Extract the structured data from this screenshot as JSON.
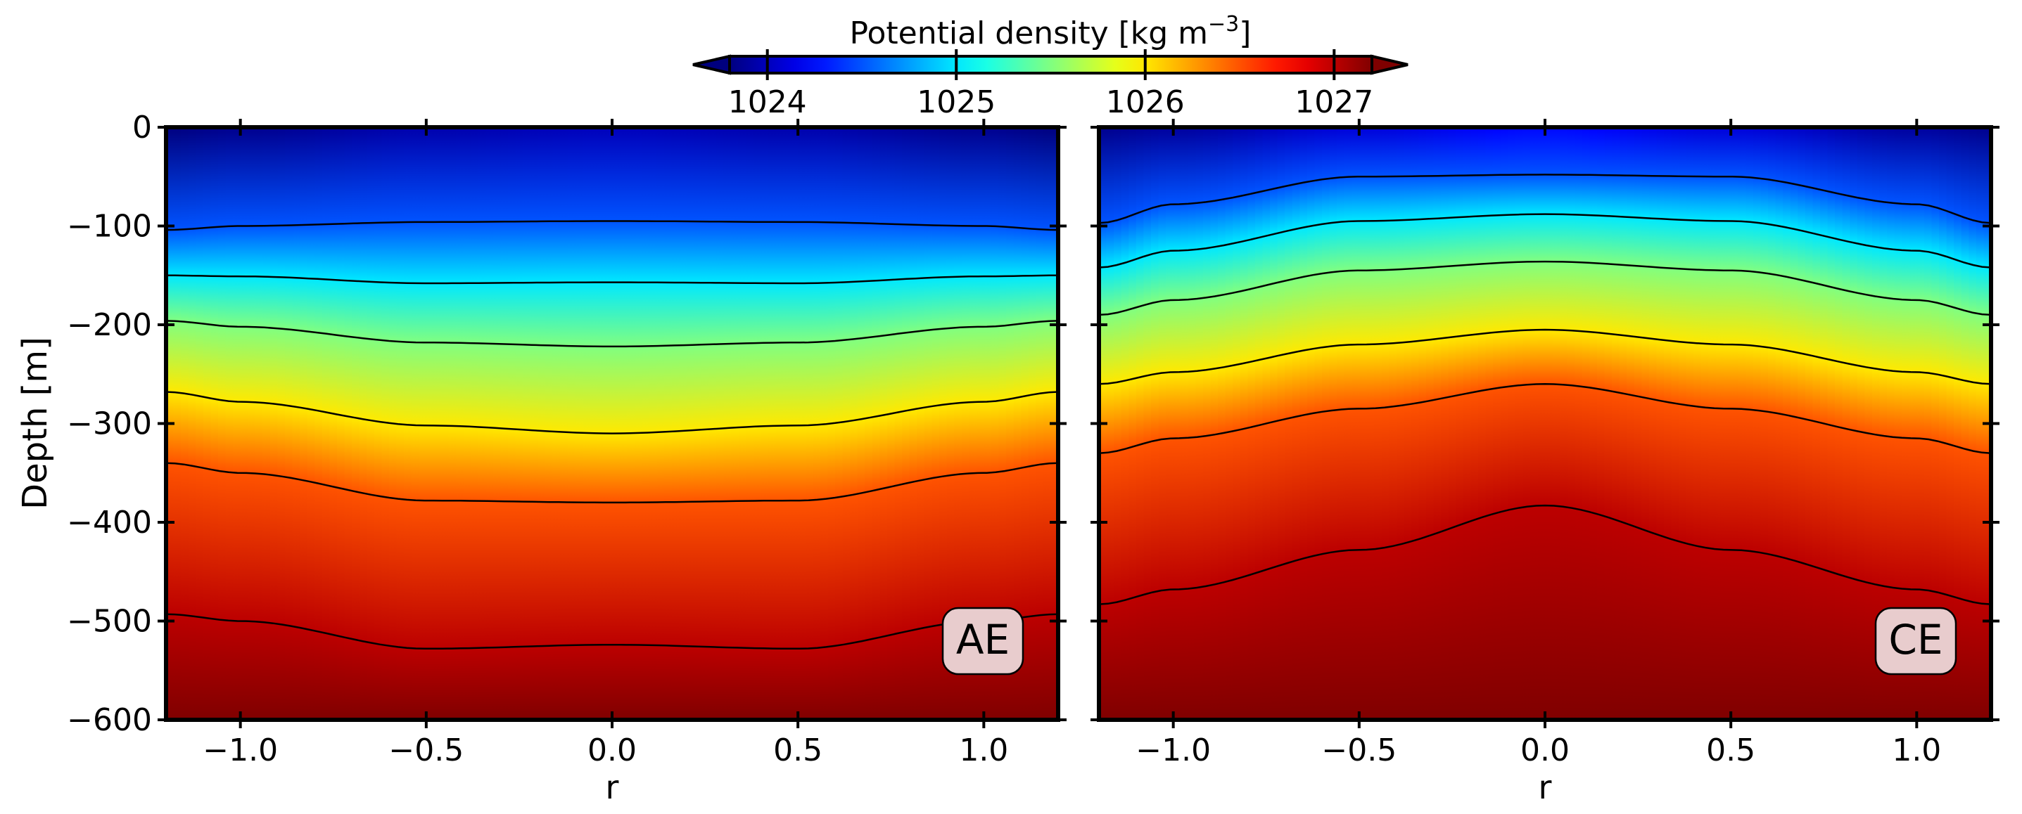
{
  "figure": {
    "colorbar": {
      "label_main": "Potential density [kg m",
      "label_exp": "−3",
      "label_end": "]",
      "range": [
        1023.8,
        1027.2
      ],
      "ticks": [
        1024,
        1025,
        1026,
        1027
      ],
      "tick_labels": [
        "1024",
        "1025",
        "1026",
        "1027"
      ],
      "colormap": "jet",
      "extend": "both"
    },
    "shared": {
      "ylabel": "Depth [m]",
      "xlabel": "r"
    }
  },
  "chart_data": [
    {
      "type": "contour",
      "panel_label": "AE",
      "xlabel": "r",
      "ylabel": "Depth [m]",
      "xlim": [
        -1.2,
        1.2
      ],
      "ylim": [
        -600,
        0
      ],
      "xticks": [
        -1.0,
        -0.5,
        0.0,
        0.5,
        1.0
      ],
      "xtick_labels": [
        "−1.0",
        "−0.5",
        "0.0",
        "0.5",
        "1.0"
      ],
      "yticks": [
        0,
        -100,
        -200,
        -300,
        -400,
        -500,
        -600
      ],
      "ytick_labels": [
        "0",
        "−100",
        "−200",
        "−300",
        "−400",
        "−500",
        "−600"
      ],
      "x": [
        -1.2,
        -1.0,
        -0.5,
        0.0,
        0.5,
        1.0,
        1.2
      ],
      "contours": [
        {
          "level": 1024.5,
          "depth": [
            -104,
            -100,
            -96,
            -95,
            -96,
            -100,
            -104
          ]
        },
        {
          "level": 1025.0,
          "depth": [
            -150,
            -151,
            -158,
            -157,
            -158,
            -151,
            -150
          ]
        },
        {
          "level": 1025.5,
          "depth": [
            -196,
            -202,
            -218,
            -222,
            -218,
            -202,
            -196
          ]
        },
        {
          "level": 1026.0,
          "depth": [
            -268,
            -278,
            -302,
            -310,
            -302,
            -278,
            -268
          ]
        },
        {
          "level": 1026.5,
          "depth": [
            -340,
            -350,
            -378,
            -380,
            -378,
            -350,
            -340
          ]
        },
        {
          "level": 1027.0,
          "depth": [
            -493,
            -500,
            -528,
            -524,
            -528,
            -500,
            -493
          ]
        }
      ],
      "surface_density": [
        1023.8,
        1023.85,
        1023.95,
        1024.0,
        1023.95,
        1023.85,
        1023.8
      ],
      "bottom_density": 1027.2
    },
    {
      "type": "contour",
      "panel_label": "CE",
      "xlabel": "r",
      "ylabel": "",
      "xlim": [
        -1.2,
        1.2
      ],
      "ylim": [
        -600,
        0
      ],
      "xticks": [
        -1.0,
        -0.5,
        0.0,
        0.5,
        1.0
      ],
      "xtick_labels": [
        "−1.0",
        "−0.5",
        "0.0",
        "0.5",
        "1.0"
      ],
      "yticks": [
        0,
        -100,
        -200,
        -300,
        -400,
        -500,
        -600
      ],
      "x": [
        -1.2,
        -1.0,
        -0.5,
        0.0,
        0.5,
        1.0,
        1.2
      ],
      "contours": [
        {
          "level": 1024.5,
          "depth": [
            -97,
            -78,
            -50,
            -48,
            -50,
            -78,
            -97
          ]
        },
        {
          "level": 1025.0,
          "depth": [
            -142,
            -125,
            -95,
            -88,
            -95,
            -125,
            -142
          ]
        },
        {
          "level": 1025.5,
          "depth": [
            -190,
            -175,
            -145,
            -136,
            -145,
            -175,
            -190
          ]
        },
        {
          "level": 1026.0,
          "depth": [
            -260,
            -248,
            -220,
            -205,
            -220,
            -248,
            -260
          ]
        },
        {
          "level": 1026.5,
          "depth": [
            -330,
            -315,
            -285,
            -260,
            -285,
            -315,
            -330
          ]
        },
        {
          "level": 1027.0,
          "depth": [
            -483,
            -468,
            -428,
            -383,
            -428,
            -468,
            -483
          ]
        }
      ],
      "surface_density": [
        1023.85,
        1023.9,
        1024.1,
        1024.25,
        1024.1,
        1023.9,
        1023.85
      ],
      "bottom_density": 1027.2
    }
  ]
}
